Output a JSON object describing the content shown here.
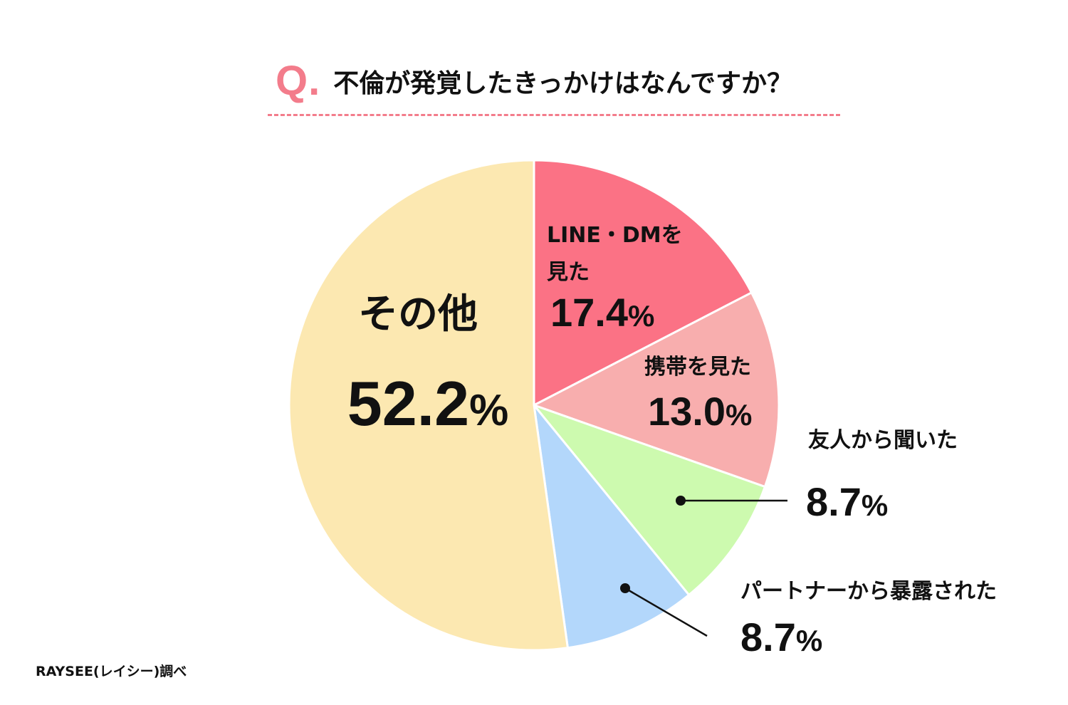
{
  "title": {
    "q_mark": "Q.",
    "text": "不倫が発覚したきっかけはなんですか？"
  },
  "chart_data": {
    "type": "pie",
    "title": "不倫が発覚したきっかけはなんですか？",
    "start_angle_deg": 0,
    "direction": "clockwise",
    "slices": [
      {
        "label_lines": [
          "LINE・DMを",
          "見た"
        ],
        "value": 17.4,
        "value_text": "17.4",
        "color": "#FB7285"
      },
      {
        "label_lines": [
          "携帯を見た"
        ],
        "value": 13.0,
        "value_text": "13.0",
        "color": "#F8AEAE"
      },
      {
        "label_lines": [
          "友人から聞いた"
        ],
        "value": 8.7,
        "value_text": "8.7",
        "color": "#CDFAAF"
      },
      {
        "label_lines": [
          "パートナーから暴露された"
        ],
        "value": 8.7,
        "value_text": "8.7",
        "color": "#B3D7FB"
      },
      {
        "label_lines": [
          "その他"
        ],
        "value": 52.2,
        "value_text": "52.2",
        "color": "#FCE8B1"
      }
    ],
    "unit": "%",
    "legend": "none"
  },
  "source": "RAYSEE(レイシー)調べ",
  "colors": {
    "accent": "#F37C8B",
    "text": "#111111",
    "slice_border": "#ffffff"
  }
}
